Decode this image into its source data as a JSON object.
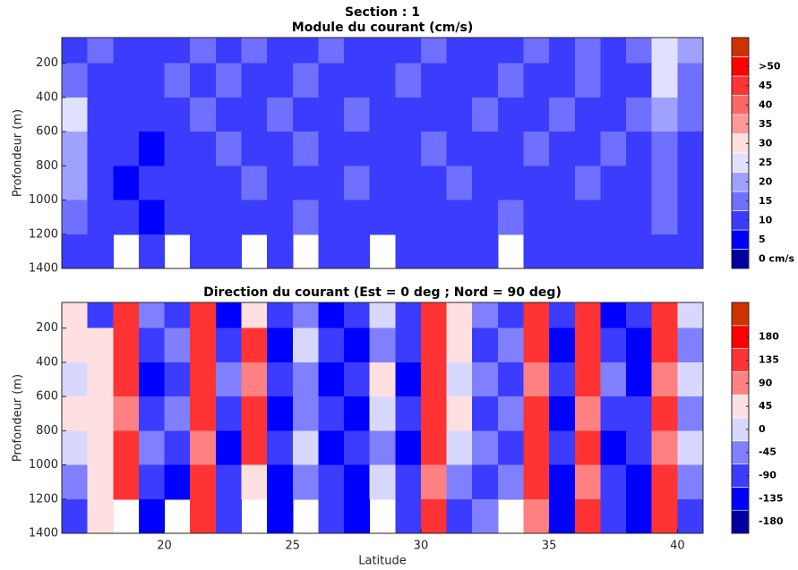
{
  "chart_data": [
    {
      "type": "heatmap",
      "suptitle": "Section : 1",
      "title": "Module du courant (cm/s)",
      "ylabel": "Profondeur (m)",
      "x": [
        16,
        17,
        18,
        19,
        20,
        21,
        22,
        23,
        24,
        25,
        26,
        27,
        28,
        29,
        30,
        31,
        32,
        33,
        34,
        35,
        36,
        37,
        38,
        39,
        40,
        41
      ],
      "y": [
        50,
        200,
        400,
        600,
        800,
        1000,
        1200,
        1400
      ],
      "values": [
        [
          10,
          15,
          10,
          10,
          10,
          15,
          10,
          15,
          10,
          10,
          15,
          10,
          10,
          10,
          15,
          10,
          10,
          10,
          15,
          10,
          15,
          10,
          15,
          25,
          20
        ],
        [
          15,
          10,
          10,
          10,
          15,
          10,
          15,
          10,
          10,
          15,
          10,
          10,
          10,
          15,
          10,
          10,
          10,
          15,
          10,
          10,
          15,
          10,
          10,
          25,
          15
        ],
        [
          25,
          10,
          10,
          10,
          10,
          15,
          10,
          10,
          15,
          10,
          10,
          15,
          10,
          10,
          10,
          10,
          15,
          10,
          10,
          15,
          10,
          10,
          15,
          20,
          15
        ],
        [
          20,
          10,
          10,
          5,
          10,
          10,
          15,
          10,
          10,
          15,
          10,
          10,
          10,
          10,
          15,
          10,
          10,
          10,
          15,
          10,
          10,
          15,
          10,
          15,
          10
        ],
        [
          20,
          10,
          5,
          10,
          10,
          10,
          10,
          15,
          10,
          10,
          10,
          15,
          10,
          10,
          10,
          15,
          10,
          10,
          10,
          10,
          15,
          10,
          10,
          15,
          10
        ],
        [
          15,
          10,
          10,
          5,
          10,
          10,
          10,
          10,
          10,
          15,
          10,
          10,
          10,
          10,
          10,
          10,
          10,
          15,
          10,
          10,
          10,
          10,
          10,
          15,
          10
        ],
        [
          10,
          10,
          null,
          10,
          null,
          10,
          10,
          null,
          10,
          null,
          10,
          10,
          null,
          10,
          10,
          10,
          10,
          null,
          10,
          10,
          10,
          10,
          10,
          10,
          10
        ]
      ],
      "xlim": [
        16,
        41
      ],
      "ylim": [
        1400,
        50
      ],
      "yticks": [
        200,
        400,
        600,
        800,
        1000,
        1200,
        1400
      ],
      "colorbar": {
        "clim": [
          -2.5,
          57.5
        ],
        "colors": [
          "#0000a0",
          "#0000ff",
          "#3c3cff",
          "#7070ff",
          "#a0a0ff",
          "#e0e0ff",
          "#ffe0e0",
          "#ff9999",
          "#ff6666",
          "#ff3333",
          "#ff0000",
          "#cc3300"
        ],
        "ticks": [
          {
            "value": 50,
            "label": ">50"
          },
          45,
          40,
          35,
          30,
          25,
          20,
          15,
          10,
          5,
          {
            "value": 0,
            "label": "0 cm/s"
          }
        ]
      }
    },
    {
      "type": "heatmap",
      "title": "Direction du courant (Est = 0 deg ; Nord = 90 deg)",
      "ylabel": "Profondeur (m)",
      "xlabel": "Latitude",
      "x": [
        16,
        17,
        18,
        19,
        20,
        21,
        22,
        23,
        24,
        25,
        26,
        27,
        28,
        29,
        30,
        31,
        32,
        33,
        34,
        35,
        36,
        37,
        38,
        39,
        40,
        41
      ],
      "y": [
        50,
        200,
        400,
        600,
        800,
        1000,
        1200,
        1400
      ],
      "values": [
        [
          45,
          -90,
          135,
          -45,
          -90,
          135,
          -135,
          45,
          -90,
          -45,
          -135,
          -90,
          0,
          -90,
          135,
          45,
          -45,
          -90,
          135,
          -90,
          135,
          -135,
          -90,
          135,
          0
        ],
        [
          45,
          45,
          135,
          -90,
          -45,
          135,
          -90,
          135,
          -135,
          0,
          -90,
          -135,
          -45,
          -90,
          135,
          45,
          -90,
          -45,
          135,
          -135,
          135,
          -90,
          -135,
          135,
          -45
        ],
        [
          0,
          45,
          135,
          -135,
          -90,
          135,
          -45,
          90,
          -90,
          -45,
          -135,
          -90,
          45,
          -135,
          135,
          0,
          -45,
          -90,
          90,
          -90,
          135,
          -45,
          -135,
          90,
          0
        ],
        [
          45,
          45,
          90,
          -90,
          -45,
          135,
          -90,
          135,
          -135,
          -45,
          -90,
          -135,
          0,
          -90,
          135,
          45,
          -90,
          -45,
          135,
          -135,
          90,
          -90,
          -90,
          135,
          -45
        ],
        [
          0,
          45,
          135,
          -45,
          -90,
          90,
          -135,
          135,
          -90,
          0,
          -135,
          -90,
          -45,
          -135,
          135,
          0,
          -45,
          -90,
          135,
          -90,
          135,
          -135,
          -90,
          90,
          0
        ],
        [
          -45,
          45,
          135,
          -90,
          -135,
          135,
          -90,
          45,
          -135,
          -45,
          -90,
          -135,
          0,
          -90,
          90,
          -45,
          -90,
          -45,
          135,
          -135,
          90,
          -90,
          -135,
          135,
          -45
        ],
        [
          -90,
          45,
          null,
          -135,
          null,
          135,
          -90,
          null,
          -135,
          null,
          -90,
          -135,
          null,
          -90,
          135,
          -90,
          -45,
          null,
          90,
          -135,
          135,
          -90,
          -135,
          135,
          -90
        ]
      ],
      "xlim": [
        16,
        41
      ],
      "ylim": [
        1400,
        50
      ],
      "yticks": [
        200,
        400,
        600,
        800,
        1000,
        1200,
        1400
      ],
      "xticks": [
        20,
        25,
        30,
        35,
        40
      ],
      "colorbar": {
        "clim": [
          -202.5,
          247.5
        ],
        "colors": [
          "#0000a0",
          "#0000ff",
          "#3c3cff",
          "#8080ff",
          "#d8d8ff",
          "#ffe0e0",
          "#ff8080",
          "#ff3333",
          "#ff0000",
          "#cc3300"
        ],
        "ticks": [
          180,
          135,
          90,
          45,
          0,
          -45,
          -90,
          -135,
          -180
        ]
      }
    }
  ]
}
